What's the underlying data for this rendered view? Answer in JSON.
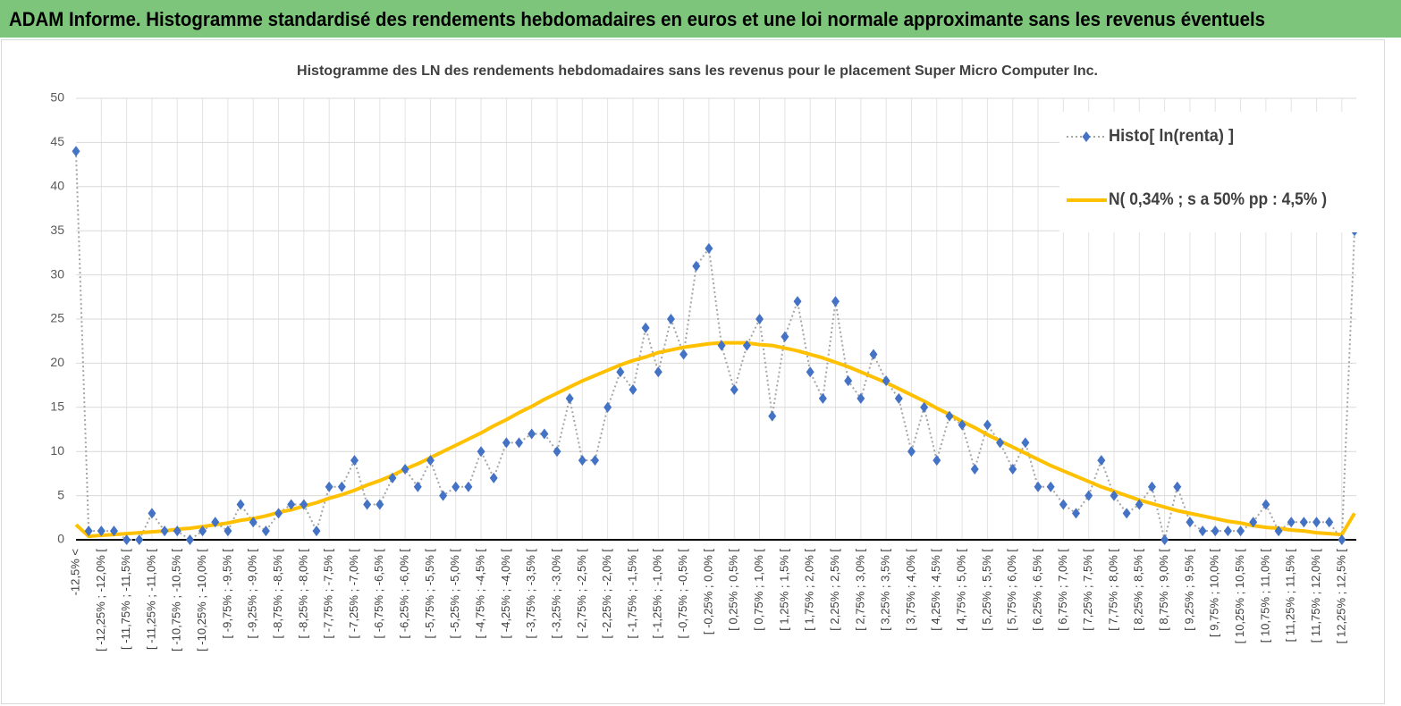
{
  "chart_data": {
    "type": "line",
    "banner": "ADAM Informe. Histogramme standardisé des rendements hebdomadaires en euros et une loi normale approximante sans les revenus éventuels",
    "title": "Histogramme des LN des rendements hebdomadaires sans les revenus pour le placement Super Micro Computer Inc.",
    "categories": [
      "-12,5% <",
      null,
      "[ -12,25% ; -12,0% [",
      null,
      "[ -11,75% ; -11,5% [",
      null,
      "[ -11,25% ; -11,0% [",
      null,
      "[ -10,75% ; -10,5% [",
      null,
      "[ -10,25% ; -10,0% [",
      null,
      "[ -9,75% ; -9,5% [",
      null,
      "[ -9,25% ; -9,0% [",
      null,
      "[ -8,75% ; -8,5% [",
      null,
      "[ -8,25% ; -8,0% [",
      null,
      "[ -7,75% ; -7,5% [",
      null,
      "[ -7,25% ; -7,0% [",
      null,
      "[ -6,75% ; -6,5% [",
      null,
      "[ -6,25% ; -6,0% [",
      null,
      "[ -5,75% ; -5,5% [",
      null,
      "[ -5,25% ; -5,0% [",
      null,
      "[ -4,75% ; -4,5% [",
      null,
      "[ -4,25% ; -4,0% [",
      null,
      "[ -3,75% ; -3,5% [",
      null,
      "[ -3,25% ; -3,0% [",
      null,
      "[ -2,75% ; -2,5% [",
      null,
      "[ -2,25% ; -2,0% [",
      null,
      "[ -1,75% ; -1,5% [",
      null,
      "[ -1,25% ; -1,0% [",
      null,
      "[ -0,75% ; -0,5% [",
      null,
      "[ -0,25% ; 0,0% [",
      null,
      "[ 0,25% ; 0,5% [",
      null,
      "[ 0,75% ; 1,0% [",
      null,
      "[ 1,25% ; 1,5% [",
      null,
      "[ 1,75% ; 2,0% [",
      null,
      "[ 2,25% ; 2,5% [",
      null,
      "[ 2,75% ; 3,0% [",
      null,
      "[ 3,25% ; 3,5% [",
      null,
      "[ 3,75% ; 4,0% [",
      null,
      "[ 4,25% ; 4,5% [",
      null,
      "[ 4,75% ; 5,0% [",
      null,
      "[ 5,25% ; 5,5% [",
      null,
      "[ 5,75% ; 6,0% [",
      null,
      "[ 6,25% ; 6,5% [",
      null,
      "[ 6,75% ; 7,0% [",
      null,
      "[ 7,25% ; 7,5% [",
      null,
      "[ 7,75% ; 8,0% [",
      null,
      "[ 8,25% ; 8,5% [",
      null,
      "[ 8,75% ; 9,0% [",
      null,
      "[ 9,25% ; 9,5% [",
      null,
      "[ 9,75% ; 10,0% [",
      null,
      "[ 10,25% ; 10,5% [",
      null,
      "[ 10,75% ; 11,0% [",
      null,
      "[ 11,25% ; 11,5% [",
      null,
      "[ 11,75% ; 12,0% [",
      null,
      "[ 12,25% ; 12,5% [",
      null
    ],
    "series": [
      {
        "name": "Histo[ ln(renta) ]",
        "color": "#4472c4",
        "values": [
          44,
          1,
          1,
          1,
          0,
          0,
          3,
          1,
          1,
          0,
          1,
          2,
          1,
          4,
          2,
          1,
          3,
          4,
          4,
          1,
          6,
          6,
          9,
          4,
          4,
          7,
          8,
          6,
          9,
          5,
          6,
          6,
          10,
          7,
          11,
          11,
          12,
          12,
          10,
          16,
          9,
          9,
          15,
          19,
          17,
          24,
          19,
          25,
          21,
          31,
          33,
          22,
          17,
          22,
          25,
          14,
          23,
          27,
          19,
          16,
          27,
          18,
          16,
          21,
          18,
          16,
          10,
          15,
          9,
          14,
          13,
          8,
          13,
          11,
          8,
          11,
          6,
          6,
          4,
          3,
          5,
          9,
          5,
          3,
          4,
          6,
          0,
          6,
          2,
          1,
          1,
          1,
          1,
          2,
          4,
          1,
          2,
          2,
          2,
          2,
          0,
          35
        ]
      },
      {
        "name": "N( 0,34% ; s a 50% pp : 4,5% )",
        "color": "#ffc000",
        "values": [
          1.7,
          0.4,
          0.5,
          0.6,
          0.7,
          0.8,
          0.9,
          1.0,
          1.2,
          1.3,
          1.5,
          1.7,
          1.9,
          2.2,
          2.4,
          2.7,
          3.1,
          3.4,
          3.8,
          4.2,
          4.7,
          5.1,
          5.6,
          6.2,
          6.7,
          7.3,
          8.0,
          8.6,
          9.3,
          10.0,
          10.7,
          11.4,
          12.1,
          12.9,
          13.6,
          14.4,
          15.1,
          15.9,
          16.6,
          17.3,
          18.0,
          18.6,
          19.2,
          19.8,
          20.3,
          20.7,
          21.2,
          21.5,
          21.8,
          22.0,
          22.2,
          22.3,
          22.3,
          22.3,
          22.1,
          22.0,
          21.7,
          21.4,
          21.0,
          20.6,
          20.1,
          19.6,
          19.0,
          18.4,
          17.8,
          17.1,
          16.4,
          15.7,
          14.9,
          14.2,
          13.4,
          12.7,
          11.9,
          11.2,
          10.5,
          9.8,
          9.1,
          8.4,
          7.8,
          7.2,
          6.6,
          6.0,
          5.5,
          5.0,
          4.5,
          4.1,
          3.7,
          3.3,
          3.0,
          2.7,
          2.4,
          2.1,
          1.9,
          1.6,
          1.4,
          1.3,
          1.1,
          1.0,
          0.8,
          0.7,
          0.6,
          3.0
        ]
      }
    ],
    "ylim": [
      0,
      50
    ],
    "yticks": [
      0,
      5,
      10,
      15,
      20,
      25,
      30,
      35,
      40,
      45,
      50
    ],
    "grid": true,
    "legend": "top-right"
  }
}
